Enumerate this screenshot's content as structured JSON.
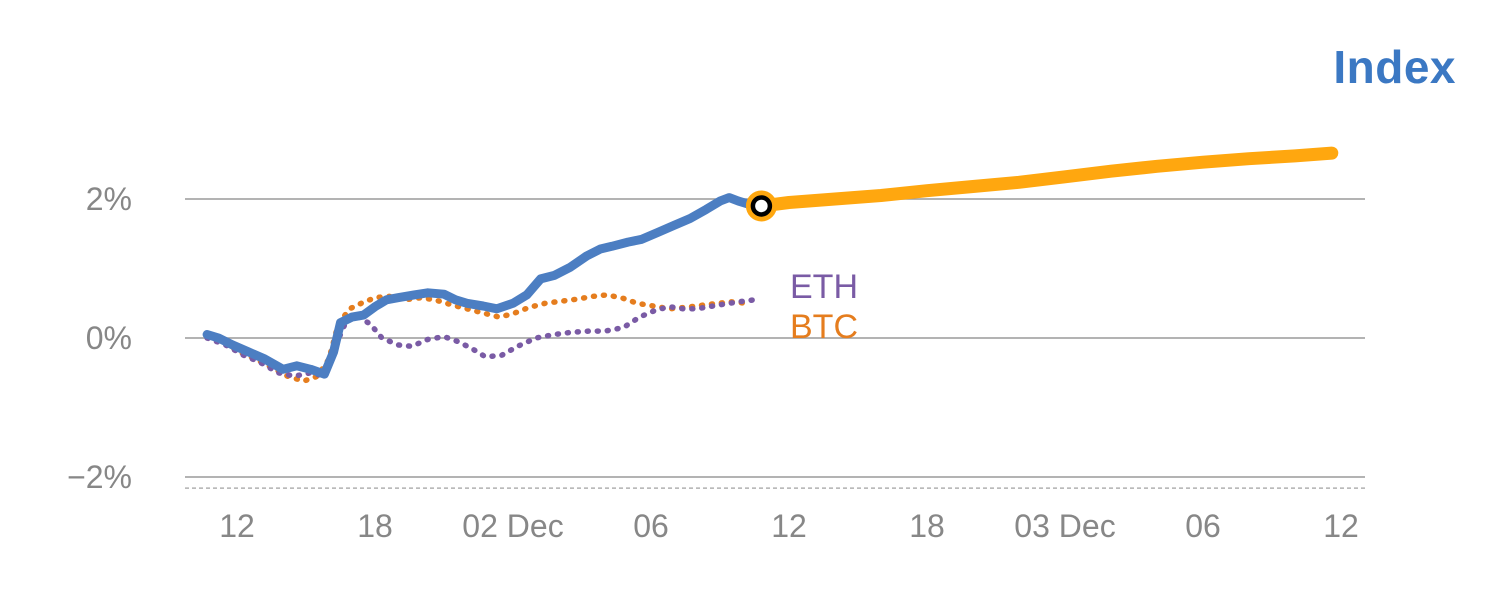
{
  "title": "Index",
  "series_labels": {
    "eth": "ETH",
    "btc": "BTC"
  },
  "colors": {
    "index": "#4c7ec2",
    "forecast": "#ffa70f",
    "eth": "#7a5ba5",
    "btc": "#e57d1e",
    "title": "#3b78c3",
    "axis_text": "#878787",
    "gridline": "#9a9a9a",
    "baseline_dashed": "#b0b0b0",
    "marker_ring": "#000000",
    "marker_fill": "#ffffff"
  },
  "chart_data": {
    "type": "line",
    "title": "Index",
    "x_unit": "hours, Dec 1 00:00 = 0",
    "grid": "horizontal",
    "ylim": [
      -2.2,
      3.2
    ],
    "x_ticks": [
      {
        "pos": 12,
        "label": "12"
      },
      {
        "pos": 18,
        "label": "18"
      },
      {
        "pos": 24,
        "label": "02 Dec"
      },
      {
        "pos": 30,
        "label": "06"
      },
      {
        "pos": 36,
        "label": "12"
      },
      {
        "pos": 42,
        "label": "18"
      },
      {
        "pos": 48,
        "label": "03 Dec"
      },
      {
        "pos": 54,
        "label": "06"
      },
      {
        "pos": 60,
        "label": "12"
      }
    ],
    "y_ticks": [
      {
        "v": 2,
        "label": "2%"
      },
      {
        "v": 0,
        "label": "0%"
      },
      {
        "v": -2,
        "label": "−2%"
      }
    ],
    "baseline_dashed_v": -2.16,
    "marker": {
      "h": 34.8,
      "v": 1.9
    },
    "series": [
      {
        "name": "BTC",
        "style": "dotted",
        "color_key": "btc",
        "width": 5.5,
        "points": [
          [
            10.7,
            0.05
          ],
          [
            11.4,
            -0.05
          ],
          [
            12.1,
            -0.2
          ],
          [
            12.8,
            -0.3
          ],
          [
            13.5,
            -0.42
          ],
          [
            14.2,
            -0.55
          ],
          [
            14.9,
            -0.62
          ],
          [
            15.5,
            -0.55
          ],
          [
            16.0,
            -0.3
          ],
          [
            16.4,
            0.2
          ],
          [
            16.9,
            0.42
          ],
          [
            17.4,
            0.5
          ],
          [
            18.0,
            0.58
          ],
          [
            18.6,
            0.6
          ],
          [
            19.3,
            0.55
          ],
          [
            20.0,
            0.58
          ],
          [
            20.6,
            0.55
          ],
          [
            21.3,
            0.48
          ],
          [
            22.0,
            0.42
          ],
          [
            22.7,
            0.36
          ],
          [
            23.4,
            0.3
          ],
          [
            24.0,
            0.35
          ],
          [
            24.7,
            0.44
          ],
          [
            25.4,
            0.5
          ],
          [
            26.1,
            0.53
          ],
          [
            26.8,
            0.56
          ],
          [
            27.5,
            0.6
          ],
          [
            28.1,
            0.62
          ],
          [
            28.8,
            0.57
          ],
          [
            29.4,
            0.5
          ],
          [
            30.1,
            0.46
          ],
          [
            30.8,
            0.42
          ],
          [
            31.5,
            0.44
          ],
          [
            32.2,
            0.47
          ],
          [
            32.9,
            0.5
          ],
          [
            33.5,
            0.52
          ],
          [
            34.2,
            0.5
          ]
        ]
      },
      {
        "name": "ETH",
        "style": "dotted",
        "color_key": "eth",
        "width": 5.5,
        "points": [
          [
            10.7,
            0.0
          ],
          [
            11.5,
            -0.1
          ],
          [
            12.3,
            -0.25
          ],
          [
            13.0,
            -0.35
          ],
          [
            13.8,
            -0.5
          ],
          [
            14.5,
            -0.55
          ],
          [
            15.2,
            -0.5
          ],
          [
            15.8,
            -0.55
          ],
          [
            16.3,
            -0.1
          ],
          [
            16.8,
            0.28
          ],
          [
            17.3,
            0.3
          ],
          [
            17.8,
            0.2
          ],
          [
            18.3,
            0.0
          ],
          [
            19.0,
            -0.1
          ],
          [
            19.6,
            -0.12
          ],
          [
            20.3,
            -0.02
          ],
          [
            21.0,
            0.02
          ],
          [
            21.6,
            -0.05
          ],
          [
            22.2,
            -0.15
          ],
          [
            22.8,
            -0.27
          ],
          [
            23.5,
            -0.25
          ],
          [
            24.2,
            -0.12
          ],
          [
            25.0,
            0.0
          ],
          [
            25.8,
            0.05
          ],
          [
            26.5,
            0.08
          ],
          [
            27.3,
            0.1
          ],
          [
            28.0,
            0.1
          ],
          [
            28.8,
            0.15
          ],
          [
            29.5,
            0.3
          ],
          [
            30.2,
            0.4
          ],
          [
            30.8,
            0.45
          ],
          [
            31.4,
            0.42
          ],
          [
            32.0,
            0.42
          ],
          [
            32.7,
            0.46
          ],
          [
            33.4,
            0.5
          ],
          [
            34.0,
            0.53
          ],
          [
            34.5,
            0.55
          ]
        ]
      },
      {
        "name": "Index",
        "style": "solid",
        "color_key": "index",
        "width": 9,
        "points": [
          [
            10.7,
            0.05
          ],
          [
            11.2,
            0.0
          ],
          [
            11.8,
            -0.1
          ],
          [
            12.5,
            -0.2
          ],
          [
            13.2,
            -0.3
          ],
          [
            14.0,
            -0.45
          ],
          [
            14.6,
            -0.4
          ],
          [
            15.2,
            -0.45
          ],
          [
            15.8,
            -0.52
          ],
          [
            16.2,
            -0.2
          ],
          [
            16.5,
            0.22
          ],
          [
            17.0,
            0.3
          ],
          [
            17.5,
            0.33
          ],
          [
            18.0,
            0.45
          ],
          [
            18.5,
            0.55
          ],
          [
            19.0,
            0.58
          ],
          [
            19.7,
            0.62
          ],
          [
            20.3,
            0.65
          ],
          [
            21.0,
            0.63
          ],
          [
            21.5,
            0.55
          ],
          [
            22.0,
            0.5
          ],
          [
            22.7,
            0.46
          ],
          [
            23.3,
            0.42
          ],
          [
            24.0,
            0.5
          ],
          [
            24.6,
            0.62
          ],
          [
            25.2,
            0.85
          ],
          [
            25.8,
            0.9
          ],
          [
            26.5,
            1.02
          ],
          [
            27.2,
            1.18
          ],
          [
            27.8,
            1.28
          ],
          [
            28.3,
            1.32
          ],
          [
            29.0,
            1.38
          ],
          [
            29.6,
            1.42
          ],
          [
            30.3,
            1.52
          ],
          [
            31.0,
            1.62
          ],
          [
            31.7,
            1.72
          ],
          [
            32.4,
            1.85
          ],
          [
            33.0,
            1.97
          ],
          [
            33.4,
            2.02
          ],
          [
            33.8,
            1.97
          ],
          [
            34.3,
            1.92
          ],
          [
            34.8,
            1.9
          ]
        ]
      },
      {
        "name": "Index forecast",
        "style": "solid",
        "color_key": "forecast",
        "width": 13,
        "points": [
          [
            34.8,
            1.9
          ],
          [
            36.0,
            1.95
          ],
          [
            38.0,
            2.0
          ],
          [
            40.0,
            2.05
          ],
          [
            42.0,
            2.12
          ],
          [
            44.0,
            2.18
          ],
          [
            46.0,
            2.24
          ],
          [
            48.0,
            2.32
          ],
          [
            50.0,
            2.4
          ],
          [
            52.0,
            2.47
          ],
          [
            54.0,
            2.53
          ],
          [
            56.0,
            2.58
          ],
          [
            58.0,
            2.62
          ],
          [
            59.6,
            2.66
          ]
        ]
      }
    ]
  }
}
